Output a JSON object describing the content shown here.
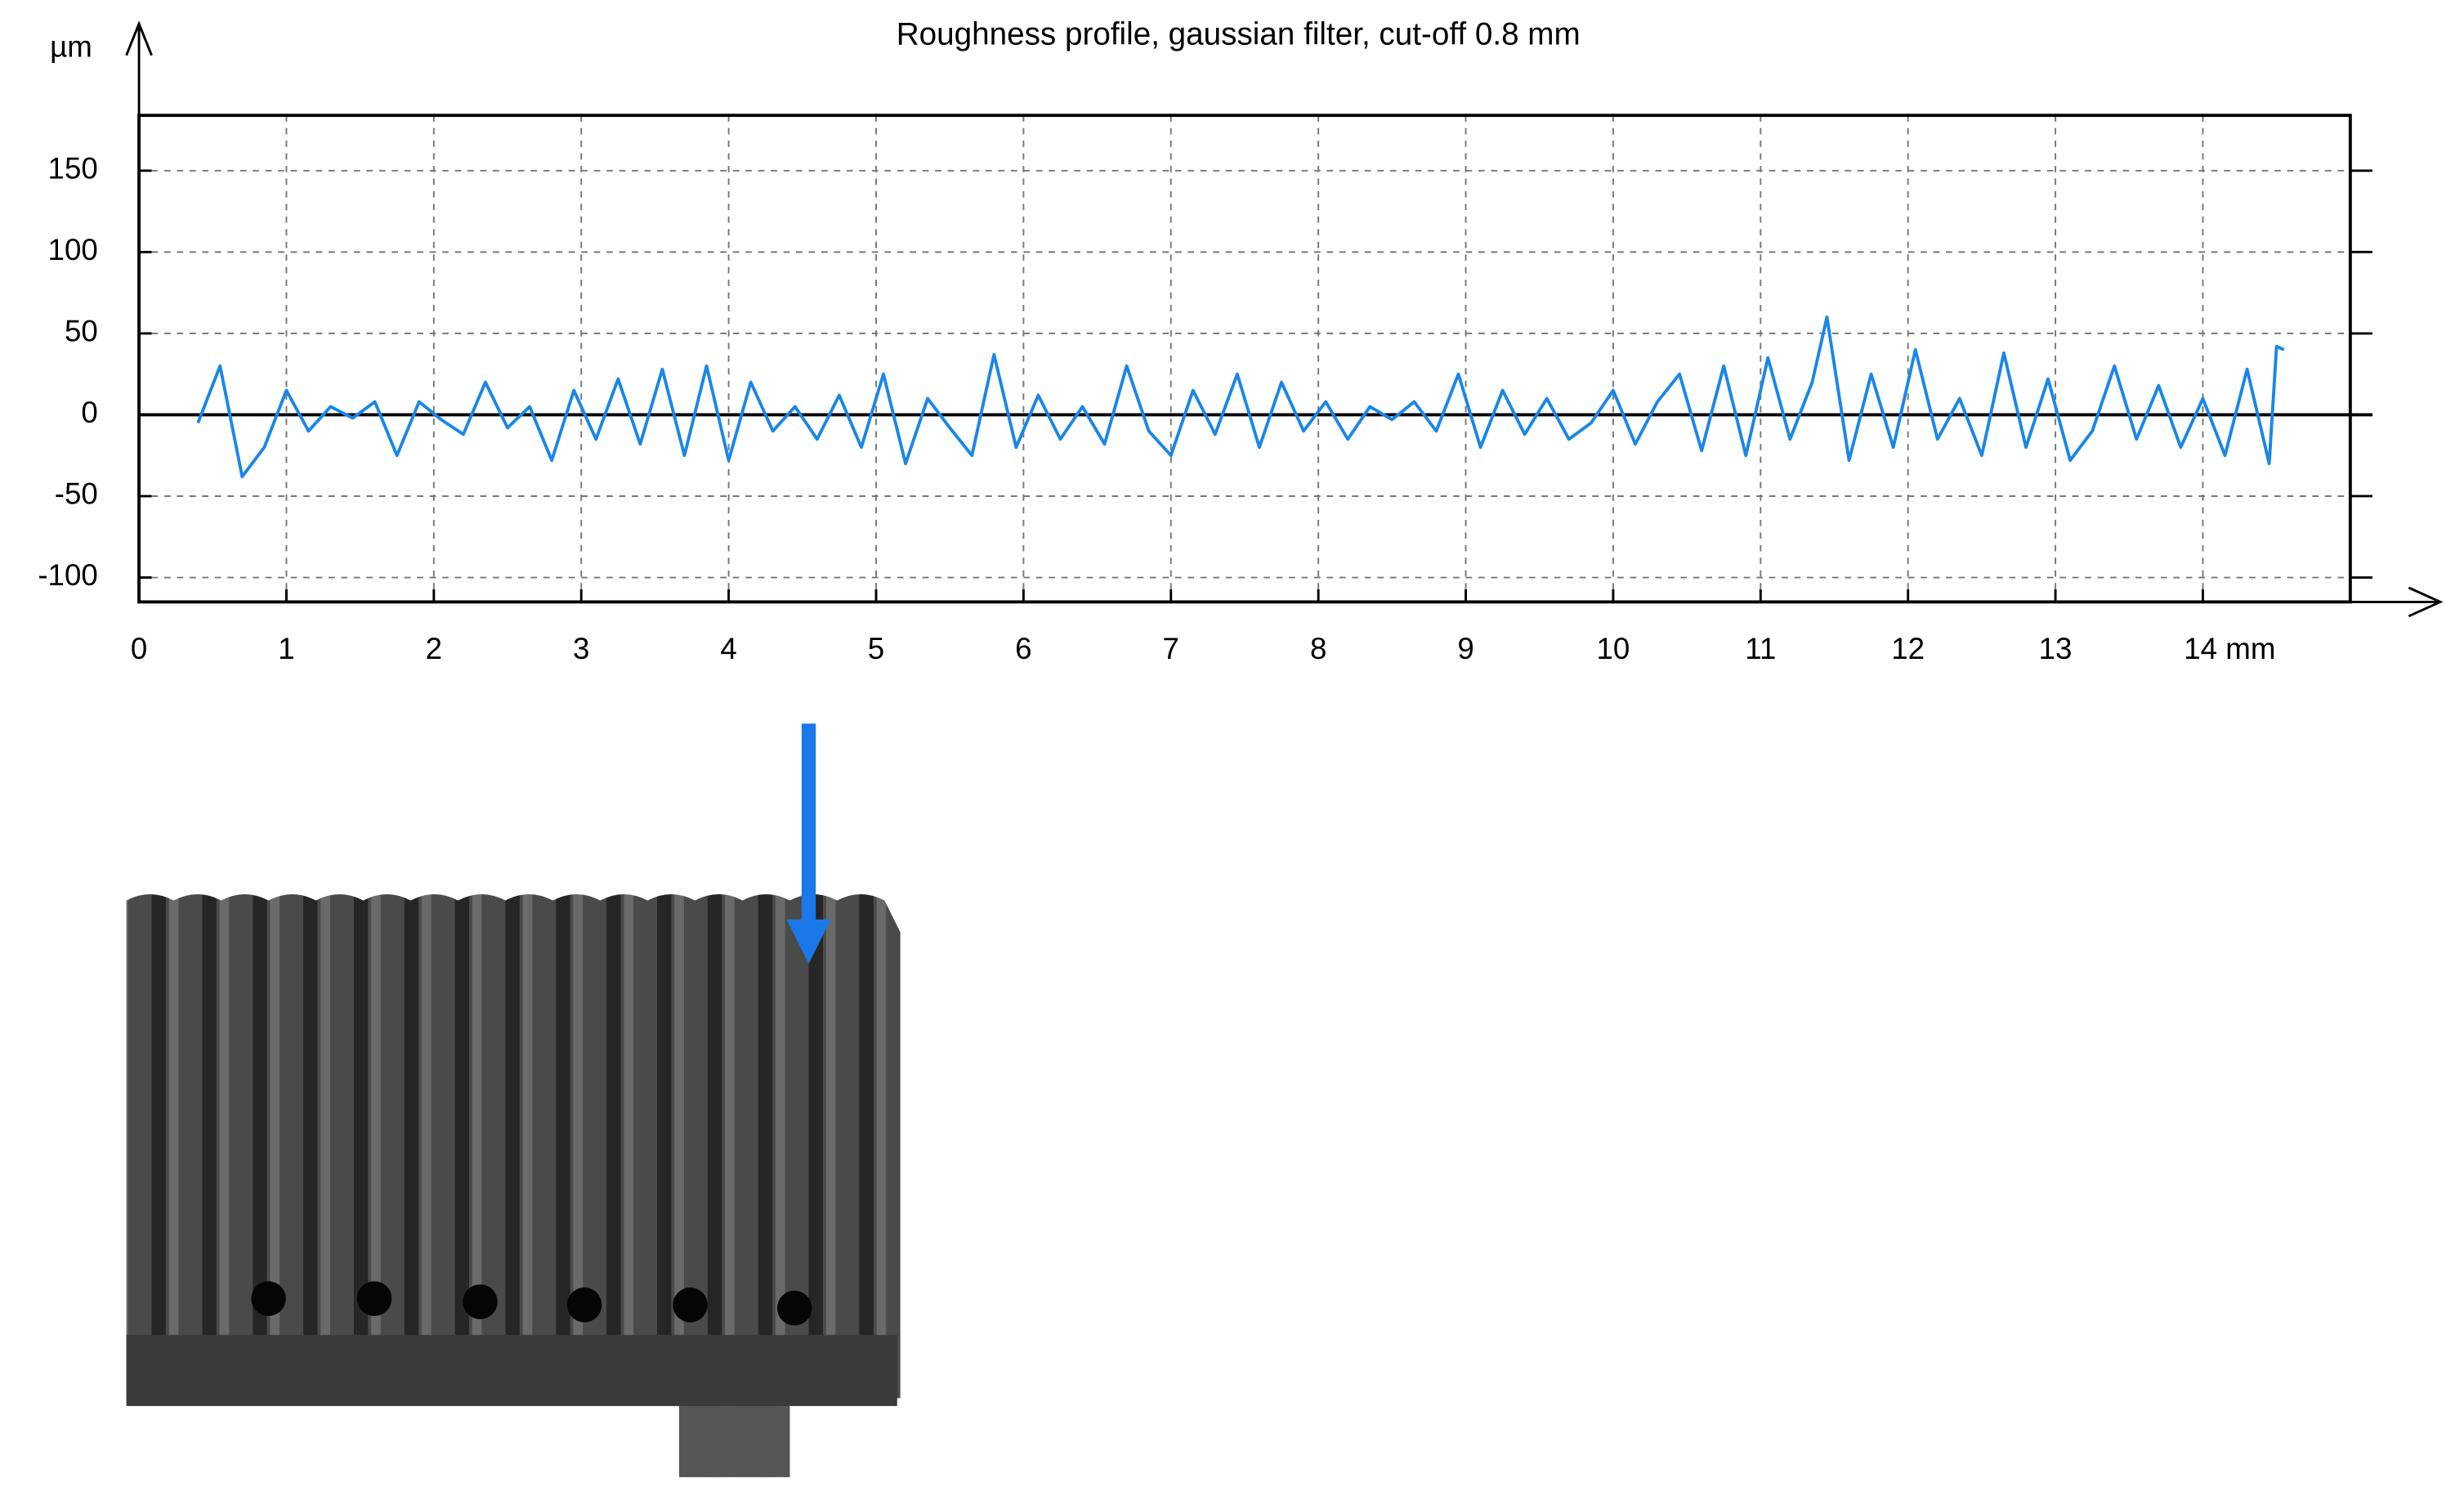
{
  "chart_data": {
    "type": "line",
    "title": "Roughness profile, gaussian filter, cut-off 0.8 mm",
    "y_label": "µm",
    "color": "#1a86e8",
    "grid": true,
    "xlim": [
      0,
      15
    ],
    "ylim": [
      -115,
      184
    ],
    "xticks": [
      0,
      1,
      2,
      3,
      4,
      5,
      6,
      7,
      8,
      9,
      10,
      11,
      12,
      13,
      {
        "value": 14,
        "label": "14 mm"
      }
    ],
    "yticks": [
      -100,
      -50,
      0,
      50,
      100,
      150
    ],
    "x": [
      0.4,
      0.55,
      0.7,
      0.85,
      1.0,
      1.15,
      1.3,
      1.45,
      1.6,
      1.75,
      1.9,
      2.05,
      2.2,
      2.35,
      2.5,
      2.65,
      2.8,
      2.95,
      3.1,
      3.25,
      3.4,
      3.55,
      3.7,
      3.85,
      4.0,
      4.15,
      4.3,
      4.45,
      4.6,
      4.75,
      4.9,
      5.05,
      5.2,
      5.35,
      5.5,
      5.65,
      5.8,
      5.95,
      6.1,
      6.25,
      6.4,
      6.55,
      6.7,
      6.85,
      7.0,
      7.15,
      7.3,
      7.45,
      7.6,
      7.75,
      7.9,
      8.05,
      8.2,
      8.35,
      8.5,
      8.65,
      8.8,
      8.95,
      9.1,
      9.25,
      9.4,
      9.55,
      9.7,
      9.85,
      10.0,
      10.15,
      10.3,
      10.45,
      10.6,
      10.75,
      10.9,
      11.05,
      11.2,
      11.35,
      11.45,
      11.6,
      11.75,
      11.9,
      12.05,
      12.2,
      12.35,
      12.5,
      12.65,
      12.8,
      12.95,
      13.1,
      13.25,
      13.4,
      13.55,
      13.7,
      13.85,
      14.0,
      14.15,
      14.3,
      14.45,
      14.5,
      14.55
    ],
    "values": [
      -5,
      30,
      -38,
      -20,
      15,
      -10,
      5,
      -2,
      8,
      -25,
      8,
      -3,
      -12,
      20,
      -8,
      5,
      -28,
      15,
      -15,
      22,
      -18,
      28,
      -25,
      30,
      -28,
      20,
      -10,
      5,
      -15,
      12,
      -20,
      25,
      -30,
      10,
      -8,
      -25,
      37,
      -20,
      12,
      -15,
      5,
      -18,
      30,
      -10,
      -25,
      15,
      -12,
      25,
      -20,
      20,
      -10,
      8,
      -15,
      5,
      -3,
      8,
      -10,
      25,
      -20,
      15,
      -12,
      10,
      -15,
      -5,
      15,
      -18,
      8,
      25,
      -22,
      30,
      -25,
      35,
      -15,
      20,
      60,
      -28,
      25,
      -20,
      40,
      -15,
      10,
      -25,
      38,
      -20,
      22,
      -28,
      -10,
      30,
      -15,
      18,
      -20,
      10,
      -25,
      28,
      -30,
      42,
      40
    ]
  }
}
